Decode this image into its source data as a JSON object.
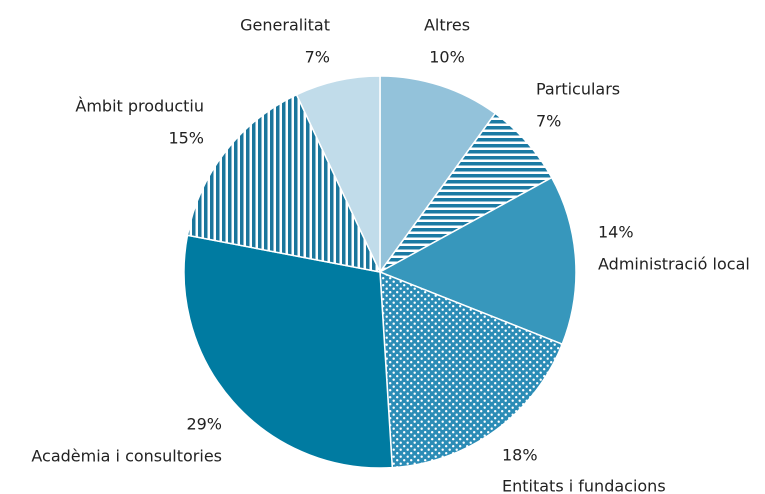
{
  "chart_data": {
    "type": "pie",
    "categories": [
      "Altres",
      "Particulars",
      "Administració local",
      "Entitats i fundacions",
      "Acadèmia i consultories",
      "Àmbit productiu",
      "Generalitat"
    ],
    "values": [
      10,
      7,
      14,
      18,
      29,
      15,
      7
    ],
    "value_labels": [
      "10%",
      "7%",
      "14%",
      "18%",
      "29%",
      "15%",
      "7%"
    ],
    "colors": [
      "#93c2da",
      "#1b7aa3",
      "#3797bc",
      "#2b8cb6",
      "#007ba1",
      "#1a769c",
      "#c1dcea"
    ],
    "patterns": [
      "solid",
      "horizontal",
      "solid",
      "dots",
      "solid",
      "vertical",
      "solid"
    ]
  }
}
